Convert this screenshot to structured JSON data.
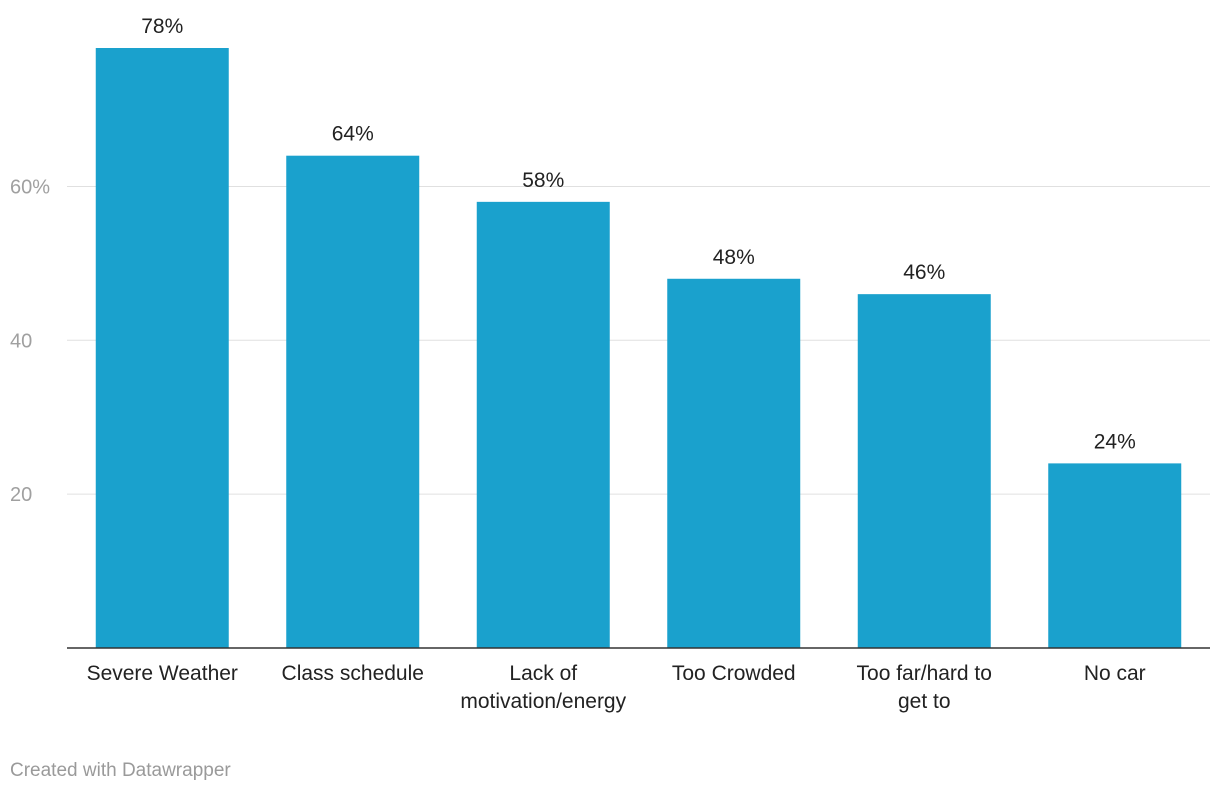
{
  "chart_data": {
    "type": "bar",
    "categories": [
      [
        "Severe Weather"
      ],
      [
        "Class schedule"
      ],
      [
        "Lack of",
        "motivation/energy"
      ],
      [
        "Too Crowded"
      ],
      [
        "Too far/hard to",
        "get to"
      ],
      [
        "No car"
      ]
    ],
    "values": [
      78,
      64,
      58,
      48,
      46,
      24
    ],
    "value_labels": [
      "78%",
      "64%",
      "58%",
      "48%",
      "46%",
      "24%"
    ],
    "yticks": [
      {
        "value": 20,
        "label": "20"
      },
      {
        "value": 40,
        "label": "40"
      },
      {
        "value": 60,
        "label": "60%"
      }
    ],
    "ylim": [
      0,
      78
    ],
    "grid": true,
    "bar_color": "#1aa1cd",
    "title": "",
    "xlabel": "",
    "ylabel": ""
  },
  "footer": {
    "credit": "Created with Datawrapper"
  }
}
